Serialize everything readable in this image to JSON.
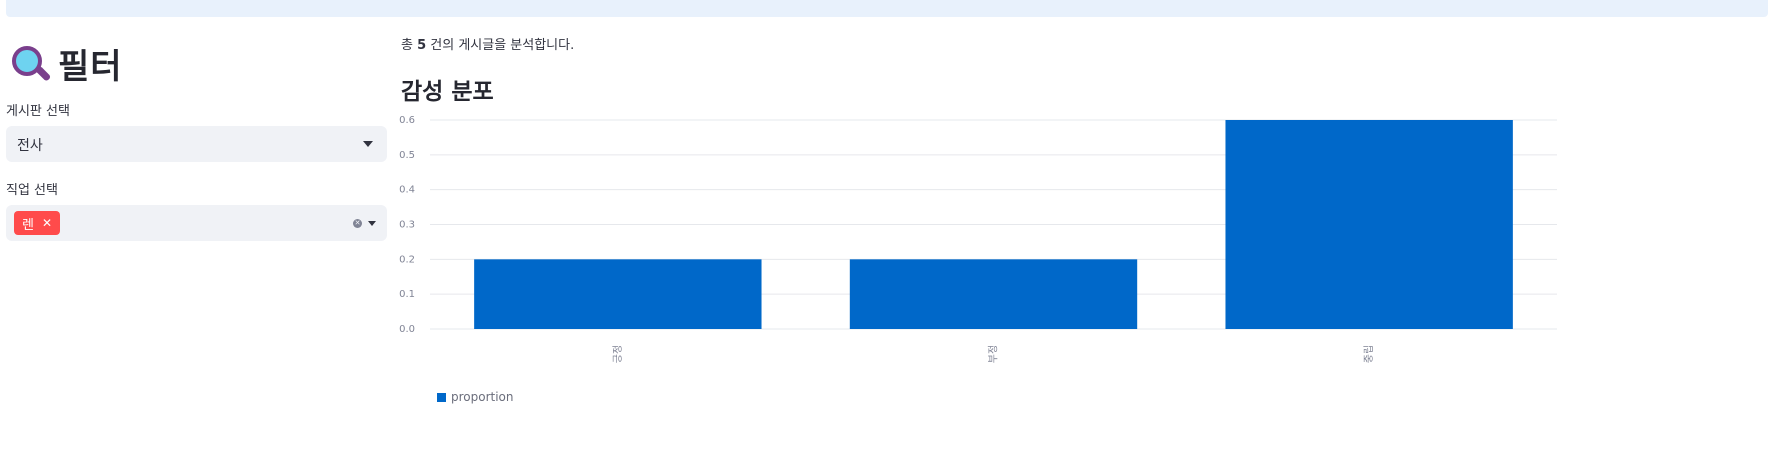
{
  "sidebar": {
    "title": "필터",
    "board_label": "게시판 선택",
    "board_value": "전사",
    "job_label": "직업 선택",
    "job_tags": [
      "렌"
    ]
  },
  "main": {
    "summary_prefix": "총 ",
    "summary_count": "5",
    "summary_suffix": " 건의 게시글을 분석합니다.",
    "section_title": "감성 분포"
  },
  "colors": {
    "accent": "#ff4b4b",
    "bar": "#0068c9",
    "banner": "#e8f1fc"
  },
  "chart_data": {
    "type": "bar",
    "categories": [
      "긍정",
      "부정",
      "중립"
    ],
    "series": [
      {
        "name": "proportion",
        "values": [
          0.2,
          0.2,
          0.6
        ]
      }
    ],
    "yticks": [
      "0.0",
      "0.1",
      "0.2",
      "0.3",
      "0.4",
      "0.5",
      "0.6"
    ],
    "ylim": [
      0,
      0.6
    ],
    "xlabel": "",
    "ylabel": "",
    "grid": true,
    "legend": "bottom-left"
  }
}
